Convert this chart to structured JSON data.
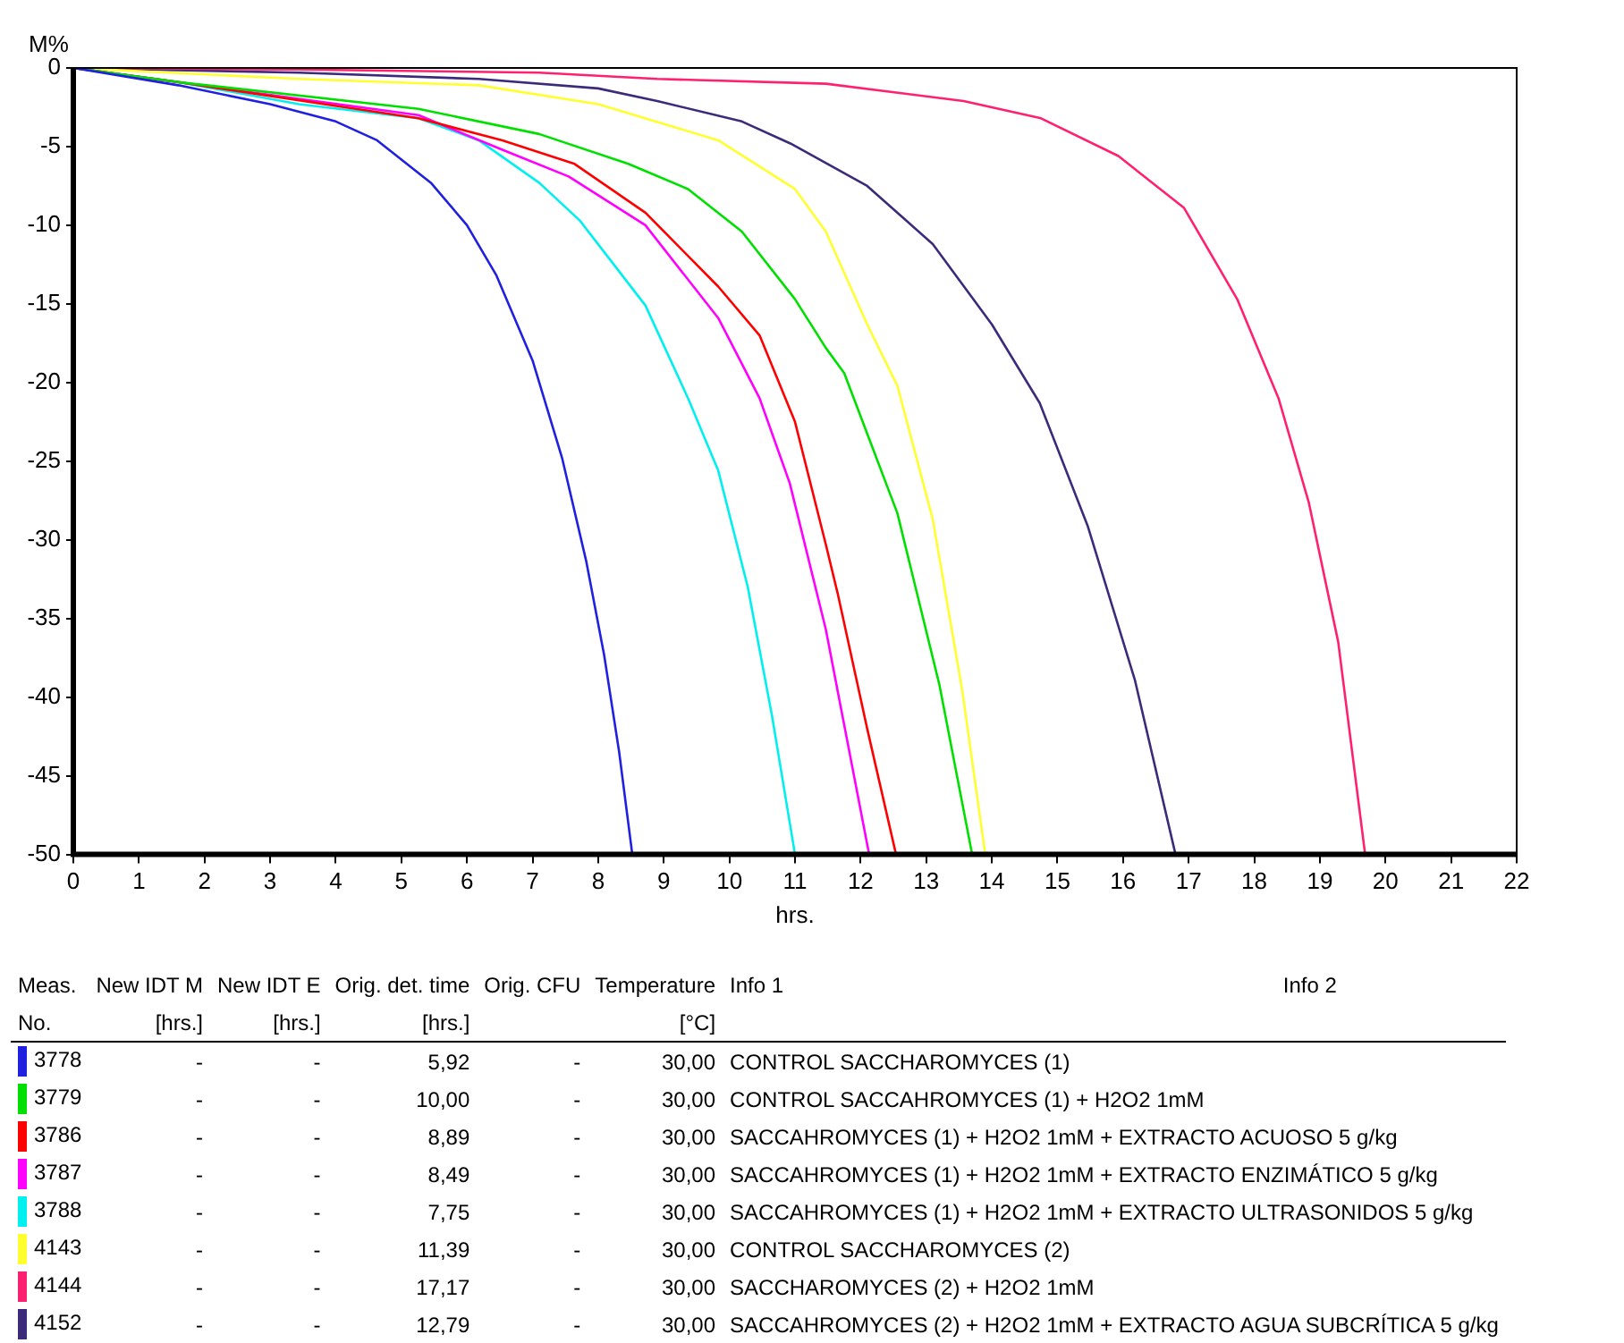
{
  "chart_data": {
    "type": "line",
    "xlabel": "hrs.",
    "ylabel": "M%",
    "xlim": [
      0,
      22
    ],
    "ylim": [
      -50,
      0
    ],
    "xticks": [
      0,
      1,
      2,
      3,
      4,
      5,
      6,
      7,
      8,
      9,
      10,
      11,
      12,
      13,
      14,
      15,
      16,
      17,
      18,
      19,
      20,
      21,
      22
    ],
    "yticks": [
      0,
      -5,
      -10,
      -15,
      -20,
      -25,
      -30,
      -35,
      -40,
      -45,
      -50
    ],
    "grid": false,
    "legend": "bottom",
    "marker": "none",
    "line_style": "solid",
    "series": [
      {
        "name": "3778",
        "color": "#2020e0",
        "x": [
          0,
          1.6,
          3.0,
          4.0,
          4.63,
          5.45,
          6.0,
          6.45,
          7.0,
          7.45,
          7.82,
          8.09,
          8.32,
          8.52
        ],
        "values": [
          0,
          -1.1,
          -2.3,
          -3.4,
          -4.6,
          -7.3,
          -10,
          -13.2,
          -18.6,
          -24.8,
          -31.4,
          -37.3,
          -43.5,
          -50
        ]
      },
      {
        "name": "3779",
        "color": "#00e000",
        "x": [
          0,
          1.6,
          5.26,
          7.1,
          8.46,
          9.37,
          10.19,
          11.0,
          11.47,
          11.75,
          12.56,
          13.2,
          13.7
        ],
        "values": [
          0,
          -0.9,
          -2.6,
          -4.2,
          -6.1,
          -7.7,
          -10.4,
          -14.7,
          -17.8,
          -19.4,
          -28.3,
          -39.2,
          -50
        ]
      },
      {
        "name": "3786",
        "color": "#ff0000",
        "x": [
          0,
          1.6,
          5.26,
          6.54,
          7.64,
          8.72,
          9.83,
          10.46,
          11.0,
          11.47,
          11.65,
          12.1,
          12.54
        ],
        "values": [
          0,
          -0.9,
          -3.2,
          -4.6,
          -6.1,
          -9.2,
          -13.9,
          -17,
          -22.5,
          -30.3,
          -33.4,
          -42,
          -50
        ]
      },
      {
        "name": "3787",
        "color": "#ff00ff",
        "x": [
          0,
          5.26,
          6.54,
          7.55,
          8.72,
          9.83,
          10.46,
          10.92,
          11.47,
          11.65,
          12.13
        ],
        "values": [
          0,
          -3.0,
          -5.2,
          -6.9,
          -10,
          -15.9,
          -21,
          -26.4,
          -35.7,
          -39.6,
          -50
        ]
      },
      {
        "name": "3788",
        "color": "#00f0f0",
        "x": [
          0,
          1.6,
          3.44,
          5.26,
          6.18,
          7.1,
          7.72,
          8.72,
          9.37,
          9.83,
          10.28,
          10.65,
          11.0
        ],
        "values": [
          0,
          -0.9,
          -2.3,
          -3.2,
          -4.6,
          -7.3,
          -9.7,
          -15.1,
          -21,
          -25.6,
          -33,
          -41.2,
          -50
        ]
      },
      {
        "name": "4143",
        "color": "#ffff30",
        "x": [
          0,
          3.44,
          6.18,
          8.0,
          9.83,
          11.0,
          11.47,
          12.1,
          12.56,
          13.1,
          13.55,
          13.9
        ],
        "values": [
          0,
          -0.7,
          -1.1,
          -2.3,
          -4.6,
          -7.7,
          -10.4,
          -16.3,
          -20.2,
          -28.7,
          -39.6,
          -50
        ]
      },
      {
        "name": "4144",
        "color": "#ff2070",
        "x": [
          0,
          3.44,
          7.1,
          8.9,
          11.47,
          13.57,
          14.75,
          15.93,
          16.93,
          17.74,
          18.37,
          18.83,
          19.28,
          19.69
        ],
        "values": [
          0,
          -0.1,
          -0.3,
          -0.7,
          -1.0,
          -2.1,
          -3.2,
          -5.6,
          -8.9,
          -14.7,
          -21,
          -27.6,
          -36.5,
          -50
        ]
      },
      {
        "name": "4152",
        "color": "#3c2a7a",
        "x": [
          0,
          3.44,
          6.18,
          8.0,
          8.9,
          10.19,
          10.93,
          12.1,
          13.1,
          14.0,
          14.73,
          15.46,
          16.18,
          16.8
        ],
        "values": [
          0,
          -0.3,
          -0.7,
          -1.3,
          -2.1,
          -3.4,
          -4.8,
          -7.5,
          -11.2,
          -16.3,
          -21.3,
          -29.1,
          -38.9,
          -50
        ]
      }
    ],
    "annotations": [
      "Meas.",
      "New IDT M",
      "New IDT E",
      "Orig. det. time",
      "Orig. CFU",
      "Temperature",
      "Info 1",
      "Info 2",
      "No.",
      "[hrs.]",
      "[hrs.]",
      "[hrs.]",
      "[°C]",
      "-",
      "-",
      "5,92",
      "-",
      "30,00",
      "CONTROL SACCHAROMYCES (1)",
      "-",
      "-",
      "10,00",
      "-",
      "30,00",
      "CONTROL SACCAHROMYCES (1) + H2O2 1mM",
      "-",
      "-",
      "8,89",
      "-",
      "30,00",
      "SACCAHROMYCES (1) + H2O2 1mM + EXTRACTO ACUOSO 5 g/kg",
      "-",
      "-",
      "8,49",
      "-",
      "30,00",
      "SACCAHROMYCES (1) + H2O2 1mM + EXTRACTO ENZIMÁTICO 5 g/kg",
      "-",
      "-",
      "7,75",
      "-",
      "30,00",
      "SACCAHROMYCES (1) + H2O2 1mM + EXTRACTO ULTRASONIDOS 5 g/kg",
      "-",
      "-",
      "11,39",
      "-",
      "30,00",
      "CONTROL SACCHAROMYCES (2)",
      "-",
      "-",
      "17,17",
      "-",
      "30,00",
      "SACCHAROMYCES (2) + H2O2 1mM",
      "-",
      "-",
      "12,79",
      "-",
      "30,00",
      "SACCAHROMYCES (2) + H2O2 1mM + EXTRACTO AGUA SUBCRÍTICA 5 g/kg"
    ]
  }
}
